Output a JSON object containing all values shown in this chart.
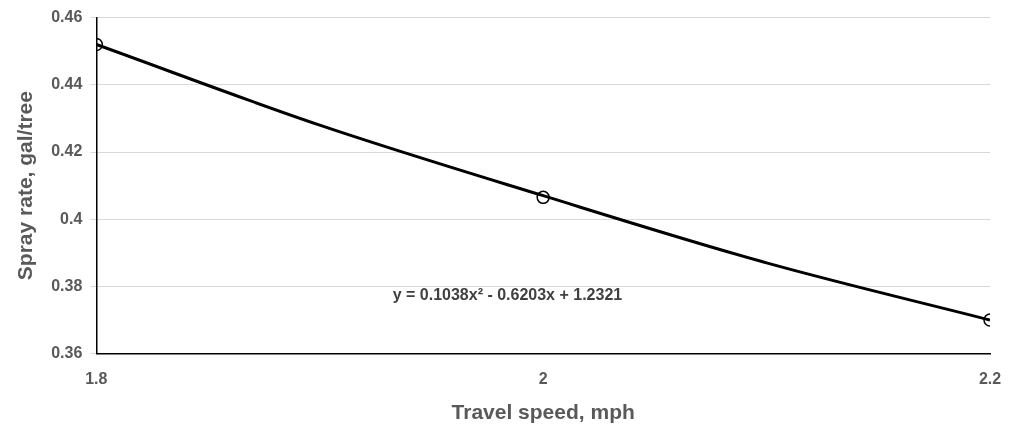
{
  "chart_data": {
    "type": "scatter",
    "xlabel": "Travel speed, mph",
    "ylabel": "Spray rate, gal/tree",
    "x": [
      1.8,
      2,
      2.2
    ],
    "series": [
      {
        "color": "#000000",
        "marker": "circle",
        "values": [
          0.452,
          0.4065,
          0.37
        ]
      },
      {
        "type": "line",
        "color": "#000000",
        "marker": "none",
        "x": [
          1.8,
          1.9,
          2,
          2.1,
          2.2
        ],
        "values": [
          0.452,
          0.428,
          0.407,
          0.387,
          0.37
        ]
      }
    ],
    "xlim": [
      1.8,
      2.2
    ],
    "xticks": [
      1.8,
      2,
      2.2
    ],
    "ylim": [
      0.36,
      0.46
    ],
    "yticks": [
      0.36,
      0.38,
      0.4,
      0.42,
      0.44,
      0.46
    ],
    "grid": "y",
    "legend": false,
    "annotations": [
      "y = 0.1038x² - 0.6203x + 1.2321"
    ]
  }
}
